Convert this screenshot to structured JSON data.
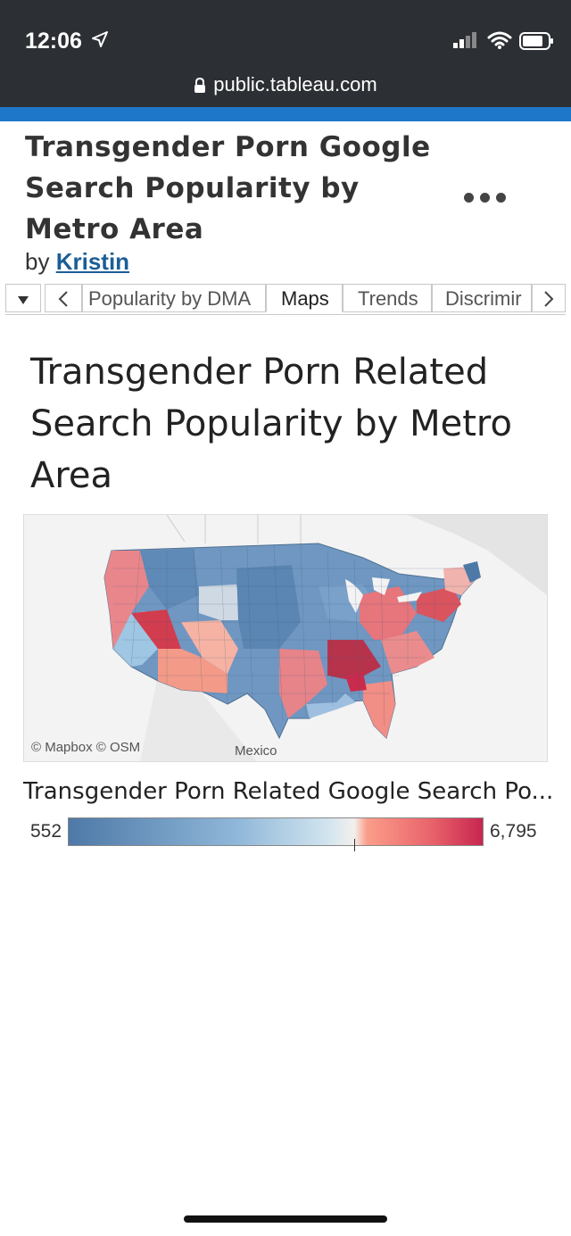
{
  "status_bar": {
    "time": "12:06",
    "url": "public.tableau.com"
  },
  "header": {
    "title": "Transgender Porn Google Search Popularity by Metro Area",
    "by_prefix": "by",
    "author": "Kristin"
  },
  "tabs": {
    "items": [
      {
        "label": "Popularity by DMA",
        "active": false
      },
      {
        "label": "Maps",
        "active": true
      },
      {
        "label": "Trends",
        "active": false
      },
      {
        "label": "Discrimir",
        "active": false
      }
    ]
  },
  "dashboard": {
    "title": "Transgender Porn Related Search Popularity by Metro Area"
  },
  "map": {
    "credits": "© Mapbox  © OSM",
    "country_label": "Mexico"
  },
  "legend": {
    "title": "Transgender Porn Related Google Search Po...",
    "min": "552",
    "max": "6,795",
    "colors": [
      "#4e79a7",
      "#a9cce3",
      "#f2f0ee",
      "#fb9e8a",
      "#c7264f"
    ]
  },
  "colors": {
    "accent_bar": "#1f77c9",
    "status_bg": "#2c2f33"
  }
}
